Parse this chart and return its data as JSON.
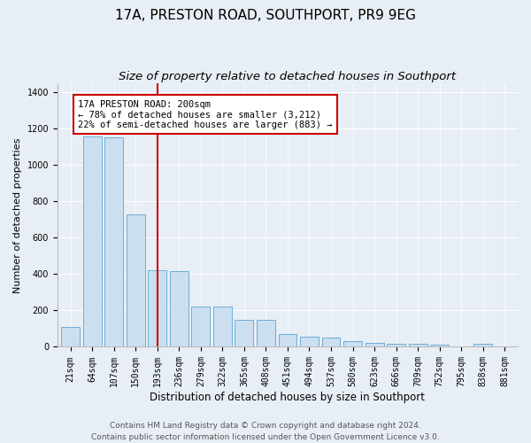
{
  "title": "17A, PRESTON ROAD, SOUTHPORT, PR9 9EG",
  "subtitle": "Size of property relative to detached houses in Southport",
  "xlabel": "Distribution of detached houses by size in Southport",
  "ylabel": "Number of detached properties",
  "categories": [
    "21sqm",
    "64sqm",
    "107sqm",
    "150sqm",
    "193sqm",
    "236sqm",
    "279sqm",
    "322sqm",
    "365sqm",
    "408sqm",
    "451sqm",
    "494sqm",
    "537sqm",
    "580sqm",
    "623sqm",
    "666sqm",
    "709sqm",
    "752sqm",
    "795sqm",
    "838sqm",
    "881sqm"
  ],
  "values": [
    110,
    1160,
    1155,
    730,
    420,
    415,
    220,
    220,
    150,
    150,
    70,
    55,
    50,
    30,
    20,
    18,
    15,
    12,
    0,
    15,
    0
  ],
  "bar_color": "#ccdff0",
  "bar_edge_color": "#6aafd6",
  "vline_x_index": 4,
  "vline_color": "#cc0000",
  "annotation_line1": "17A PRESTON ROAD: 200sqm",
  "annotation_line2": "← 78% of detached houses are smaller (3,212)",
  "annotation_line3": "22% of semi-detached houses are larger (883) →",
  "annotation_box_color": "#ffffff",
  "annotation_box_edge": "#cc0000",
  "ylim": [
    0,
    1450
  ],
  "yticks": [
    0,
    200,
    400,
    600,
    800,
    1000,
    1200,
    1400
  ],
  "footer1": "Contains HM Land Registry data © Crown copyright and database right 2024.",
  "footer2": "Contains public sector information licensed under the Open Government Licence v3.0.",
  "bg_color": "#e8eef5",
  "plot_bg_color": "#e8eef5",
  "title_fontsize": 11,
  "subtitle_fontsize": 9.5,
  "ylabel_fontsize": 8,
  "xlabel_fontsize": 8.5,
  "tick_fontsize": 7,
  "annot_fontsize": 7.5,
  "footer_fontsize": 6.5
}
